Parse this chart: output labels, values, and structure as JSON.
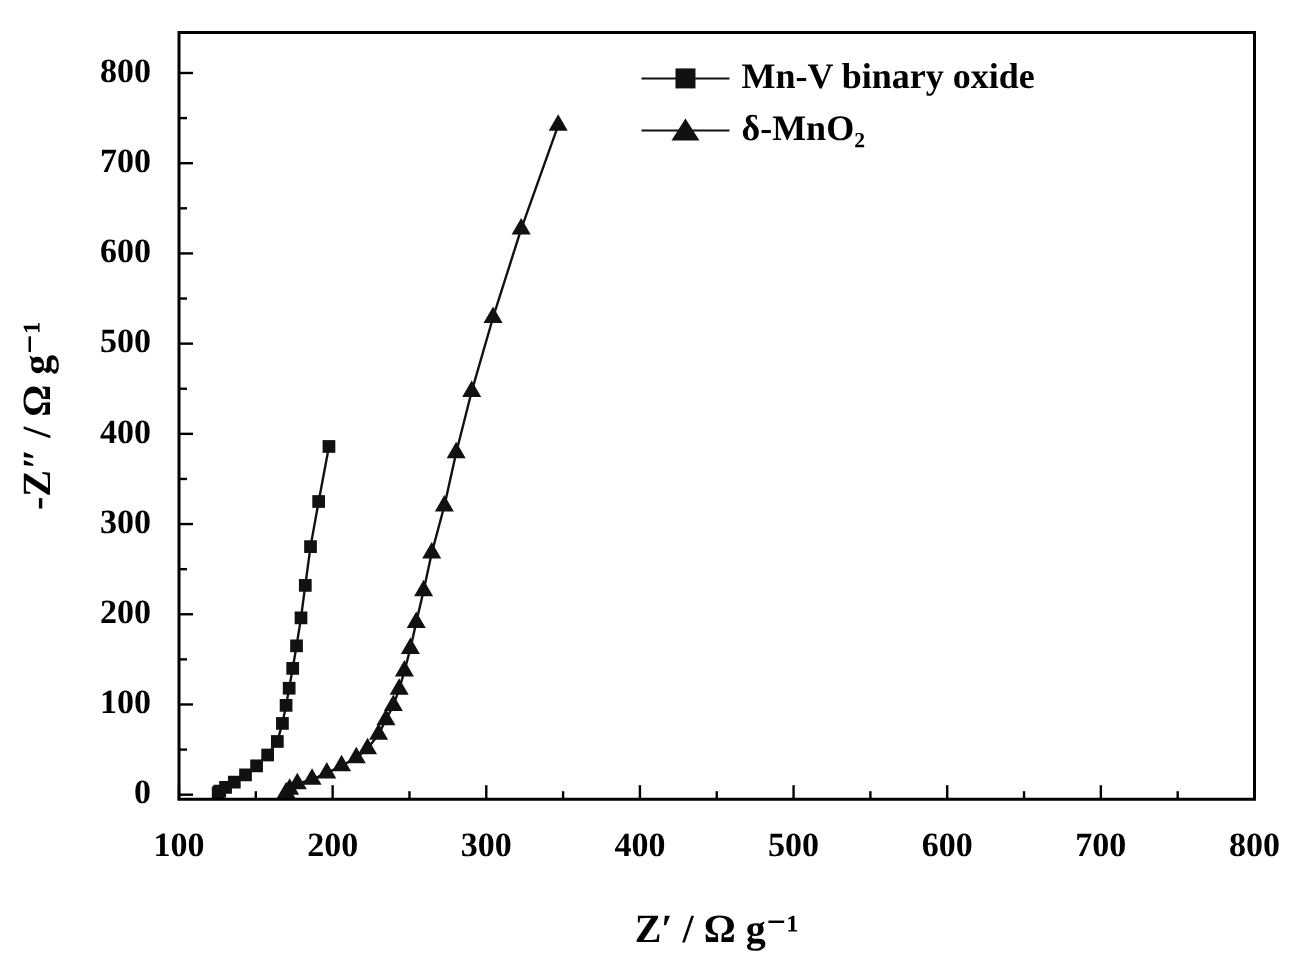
{
  "chart_data": {
    "type": "line",
    "xlabel": "Z′ / Ω g⁻¹",
    "ylabel": "-Z″ / Ω g⁻¹",
    "xlim": [
      100,
      800
    ],
    "xticks": [
      100,
      {
        "value": 150,
        "label": null
      },
      200,
      {
        "value": 250,
        "label": null
      },
      300,
      {
        "value": 350,
        "label": null
      },
      400,
      {
        "value": 450,
        "label": null
      },
      500,
      {
        "value": 550,
        "label": null
      },
      600,
      {
        "value": 650,
        "label": null
      },
      700,
      {
        "value": 750,
        "label": null
      },
      800
    ],
    "ylim": [
      -5,
      845
    ],
    "yticks": [
      0,
      {
        "value": 50,
        "label": null
      },
      100,
      {
        "value": 150,
        "label": null
      },
      200,
      {
        "value": 250,
        "label": null
      },
      300,
      {
        "value": 350,
        "label": null
      },
      400,
      {
        "value": 450,
        "label": null
      },
      500,
      {
        "value": 550,
        "label": null
      },
      600,
      {
        "value": 650,
        "label": null
      },
      700,
      {
        "value": 750,
        "label": null
      },
      800
    ],
    "legend": "top",
    "grid": false,
    "line_style": "solid",
    "series": [
      {
        "name": "Mn-V binary oxide",
        "color": "#111111",
        "marker": "square",
        "x": [
          125.5,
          126.5,
          130.3,
          136,
          143.3,
          150.5,
          157.7,
          164,
          167.3,
          169.7,
          171.7,
          174,
          176.5,
          179.4,
          182.2,
          185.6,
          190.9,
          197.6
        ],
        "values": [
          2,
          4,
          8,
          14,
          22,
          32,
          44,
          59,
          79,
          99,
          118,
          140,
          165,
          196,
          232,
          275,
          325,
          386
        ]
      },
      {
        "name": "δ-MnO₂",
        "color": "#111111",
        "marker": "triangle",
        "x": [
          169.7,
          172,
          177,
          186.6,
          196.2,
          205.8,
          215.4,
          222.7,
          229.9,
          234.7,
          239.5,
          243.3,
          246.7,
          250.6,
          254.4,
          259.2,
          264.5,
          272.7,
          280.4,
          290.5,
          304.4,
          322.7,
          346.8
        ],
        "values": [
          2,
          6,
          12,
          17,
          24,
          32,
          41,
          51,
          67,
          83,
          99,
          117,
          137,
          162,
          191,
          226,
          268,
          320,
          379,
          447,
          529,
          627,
          742
        ]
      }
    ]
  }
}
